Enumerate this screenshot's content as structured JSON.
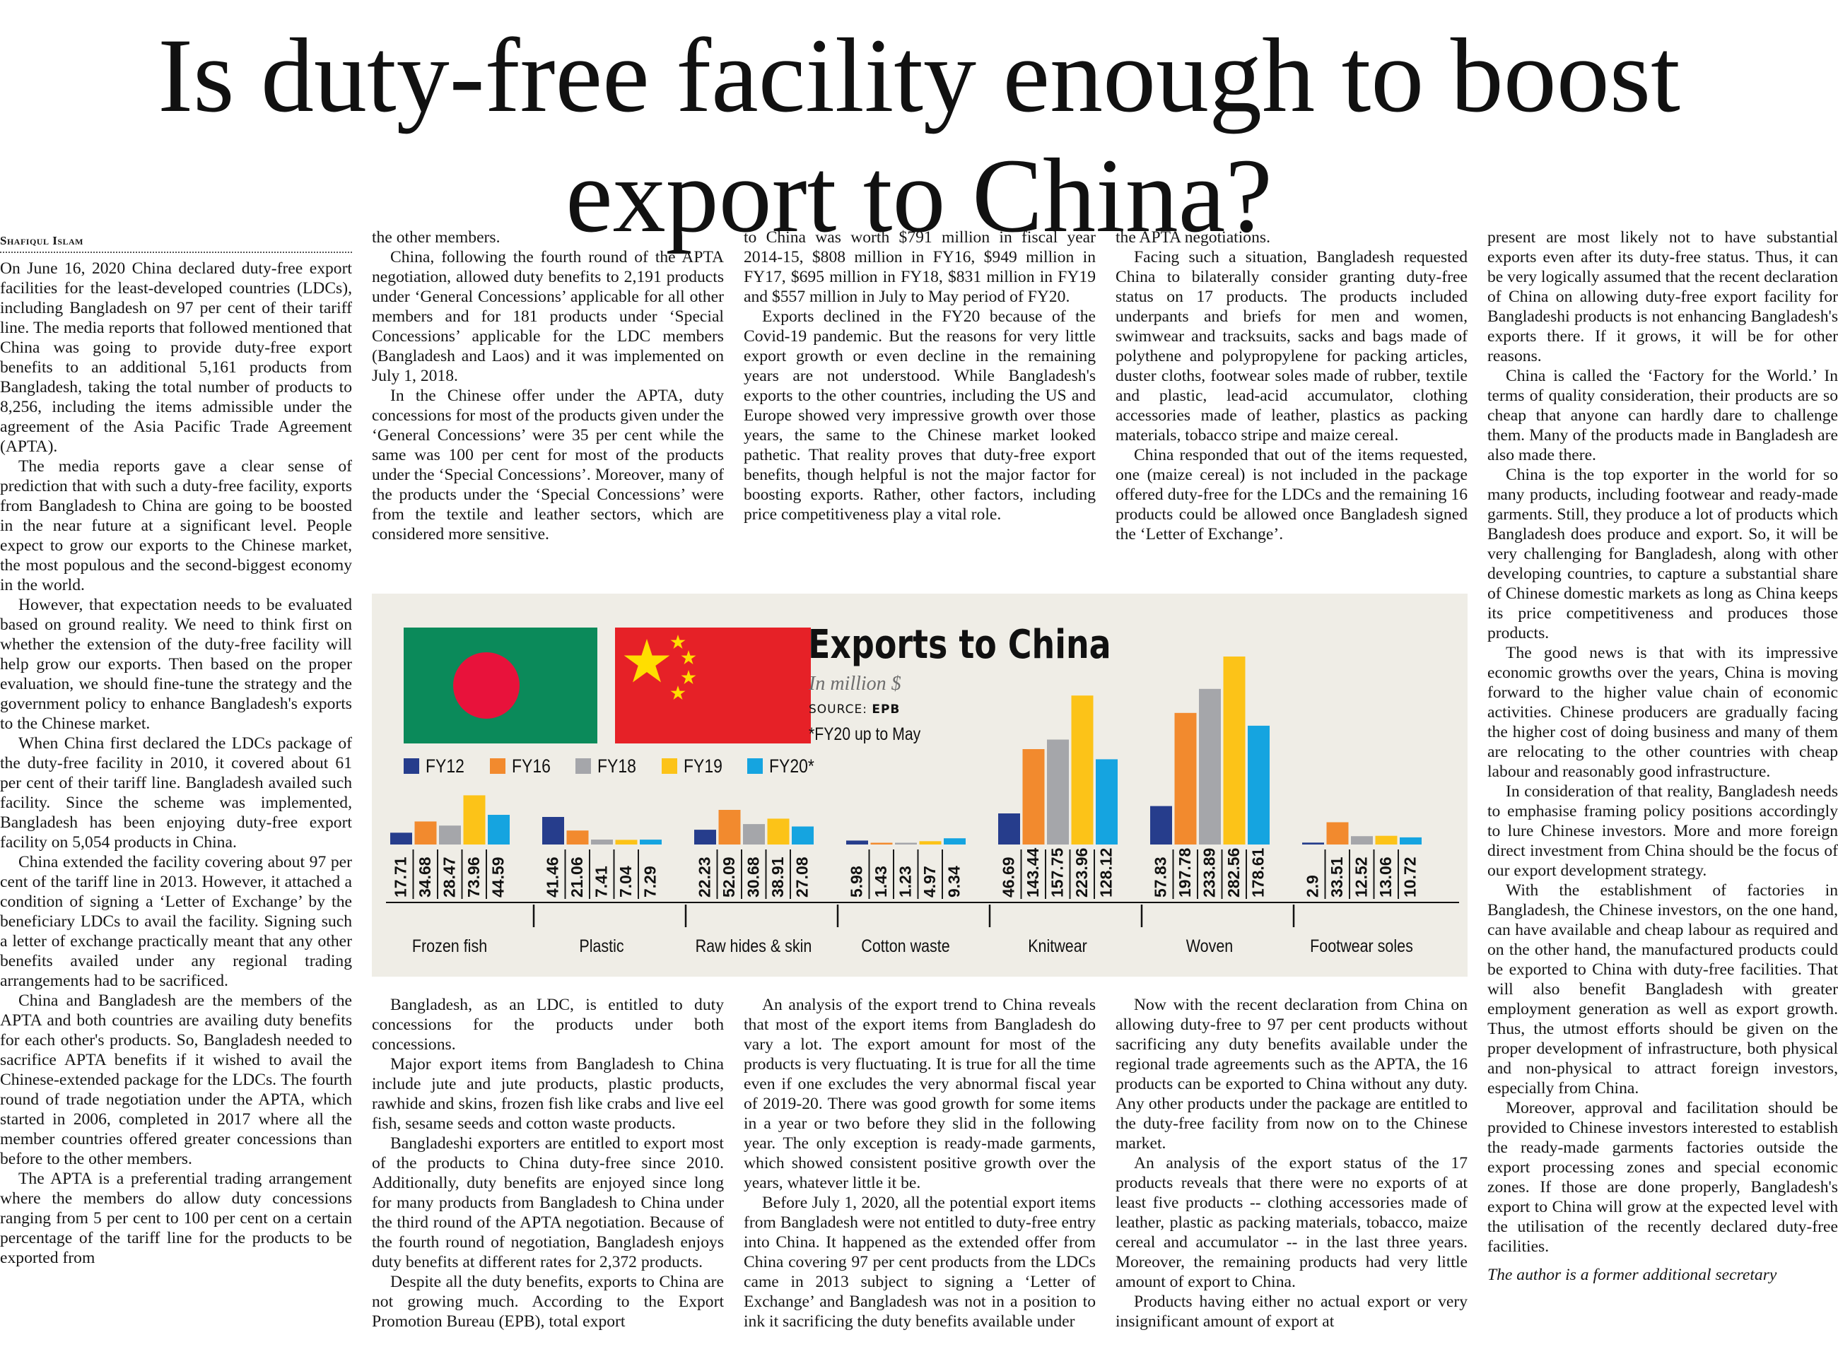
{
  "headline": {
    "line1": "Is duty-free facility enough to boost",
    "line2": "export to China?"
  },
  "byline": "Shafiqul Islam",
  "columns": {
    "col1": [
      "On June 16, 2020 China declared duty-free export facilities for the least-developed countries (LDCs), including Bangladesh on 97 per cent of their tariff line. The media reports that followed mentioned that China was going to provide duty-free export benefits to an additional 5,161 products from Bangladesh, taking the total number of products to 8,256, including the items admissible under the agreement of the Asia Pacific Trade Agreement (APTA).",
      "The media reports gave a clear sense of prediction that with such a duty-free facility, exports from Bangladesh to China are going to be boosted in the near future at a significant level. People expect to grow our exports to the Chinese market, the most populous and the second-biggest economy in the world.",
      "However, that expectation needs to be evaluated based on ground reality. We need to think first on whether the extension of the duty-free facility will help grow our exports. Then based on the proper evaluation, we should fine-tune the strategy and the government policy to enhance Bangladesh's exports to the Chinese market.",
      "When China first declared the LDCs package of the duty-free facility in 2010, it covered about 61 per cent of their tariff line. Bangladesh availed such facility. Since the scheme was implemented, Bangladesh has been enjoying duty-free export facility on 5,054 products in China.",
      "China extended the facility covering about 97 per cent of the tariff line in 2013. However, it attached a condition of signing a ‘Letter of Exchange’ by the beneficiary LDCs to avail the facility. Signing such a letter of exchange practically meant that any other benefits availed under any regional trading arrangements had to be sacrificed.",
      "China and Bangladesh are the members of the APTA and both countries are availing duty benefits for each other's products. So, Bangladesh needed to sacrifice APTA benefits if it wished to avail the Chinese-extended package for the LDCs. The fourth round of trade negotiation under the APTA, which started in 2006, completed in 2017 where all the member countries offered greater concessions than before to the other members.",
      "The APTA is a preferential trading arrangement where the members do allow duty concessions ranging from 5 per cent to 100 per cent on a certain percentage of the tariff line for the products to be exported from"
    ],
    "col2_top": [
      "the other members.",
      "China, following the fourth round of the APTA negotiation, allowed duty benefits to 2,191 products under ‘General Concessions’ applicable for all other members and for 181 products under ‘Special Concessions’ applicable for the LDC members (Bangladesh and Laos) and it was implemented on July 1, 2018.",
      "In the Chinese offer under the APTA, duty concessions for most of the products given under the ‘General Concessions’ were 35 per cent while the same was 100 per cent for most of the products under the ‘Special Concessions’. Moreover, many of the products under the ‘Special Concessions’ were from the textile and leather sectors, which are considered more sensitive."
    ],
    "col3_top": [
      "to China was worth $791 million in fiscal year 2014-15, $808 million in FY16, $949 million in FY17, $695 million in FY18, $831 million in FY19 and $557 million in July to May period of FY20.",
      "Exports declined in the FY20 because of the Covid-19 pandemic. But the reasons for very little export growth or even decline in the remaining years are not understood. While Bangladesh's exports to the other countries, including the US and Europe showed very impressive growth over those years, the same to the Chinese market looked pathetic. That reality proves that duty-free export benefits, though helpful is not the major factor for boosting exports. Rather, other factors, including price competitiveness play a vital role."
    ],
    "col4_top": [
      "the APTA negotiations.",
      "Facing such a situation, Bangladesh requested China to bilaterally consider granting duty-free status on 17 products. The products included underpants and briefs for men and women, swimwear and tracksuits, sacks and bags made of polythene and polypropylene for packing articles, duster cloths, footwear soles made of rubber, textile and plastic, lead-acid accumulator, clothing accessories made of leather, plastics as packing materials, tobacco stripe and maize cereal.",
      "China responded that out of the items requested, one (maize cereal) is not included in the package offered duty-free for the LDCs and the remaining 16 products could be allowed once Bangladesh signed the ‘Letter of Exchange’."
    ],
    "col5": [
      "present are most likely not to have substantial exports even after its duty-free status. Thus, it can be very logically assumed that the recent declaration of China on allowing duty-free export facility for Bangladeshi products is not enhancing Bangladesh's exports there. If it grows, it will be for other reasons.",
      "China is called the ‘Factory for the World.’ In terms of quality consideration, their products are so cheap that anyone can hardly dare to challenge them. Many of the products made in Bangladesh are also made there.",
      "China is the top exporter in the world for so many products, including footwear and ready-made garments. Still, they produce a lot of products which Bangladesh does produce and export. So, it will be very challenging for Bangladesh, along with other developing countries, to capture a substantial share of Chinese domestic markets as long as China keeps its price competitiveness and produces those products.",
      "The good news is that with its impressive economic growths over the years, China is moving forward to the higher value chain of economic activities. Chinese producers are gradually facing the higher cost of doing business and many of them are relocating to the other countries with cheap labour and reasonably good infrastructure.",
      "In consideration of that reality, Bangladesh needs to emphasise framing policy positions accordingly to lure Chinese investors. More and more foreign direct investment from China should be the focus of our export development strategy.",
      "With the establishment of factories in Bangladesh, the Chinese investors, on the one hand, can have available and cheap labour as required and on the other hand, the manufactured products could be exported to China with duty-free facilities. That will also benefit Bangladesh with greater employment generation as well as export growth. Thus, the utmost efforts should be given on the proper development of infrastructure, both physical and non-physical to attract foreign investors, especially from China.",
      "Moreover, approval and facilitation should be provided to Chinese investors interested to establish the ready-made garments factories outside the export processing zones and special economic zones. If those are done properly, Bangladesh's export to China will grow at the expected level with the utilisation of the recently declared duty-free facilities."
    ],
    "author": "The author is a former additional secretary",
    "col2_bottom": [
      "Bangladesh, as an LDC, is entitled to duty concessions for the products under both concessions.",
      "Major export items from Bangladesh to China include jute and jute products, plastic products, rawhide and skins, frozen fish like crabs and live eel fish, sesame seeds and cotton waste products.",
      "Bangladeshi exporters are entitled to export most of the products to China duty-free since 2010. Additionally, duty benefits are enjoyed since long for many products from Bangladesh to China under the third round of the APTA negotiation. Because of the fourth round of negotiation, Bangladesh enjoys duty benefits at different rates for 2,372 products.",
      "Despite all the duty benefits, exports to China are not growing much. According to the Export Promotion Bureau (EPB), total export"
    ],
    "col3_bottom": [
      "An analysis of the export trend to China reveals that most of the export items from Bangladesh do vary a lot. The export amount for most of the products is very fluctuating. It is true for all the time even if one excludes the very abnormal fiscal year of 2019-20. There was good growth for some items in a year or two before they slid in the following year. The only exception is ready-made garments, which showed consistent positive growth over the years, whatever little it be.",
      "Before July 1, 2020, all the potential export items from Bangladesh were not entitled to duty-free entry into China. It happened as the extended offer from China covering 97 per cent products from the LDCs came in 2013 subject to signing a ‘Letter of Exchange’ and Bangladesh was not in a position to ink it sacrificing the duty benefits available under"
    ],
    "col4_bottom": [
      "Now with the recent declaration from China on allowing duty-free to 97 per cent products without sacrificing any duty benefits available under the regional trade agreements such as the APTA, the 16 products can be exported to China without any duty. Any other products under the package are entitled to the duty-free facility from now on to the Chinese market.",
      "An analysis of the export status of the 17 products reveals that there were no exports of at least five products -- clothing accessories made of leather, plastic as packing materials, tobacco, maize cereal and accumulator -- in the last three years. Moreover, the remaining products had very little amount of export to China.",
      "Products having either no actual export or very insignificant amount of export at"
    ]
  },
  "infographic": {
    "flags": [
      "bangladesh-flag",
      "china-flag"
    ],
    "title": "Exports to China",
    "unit": "In million $",
    "source_label": "SOURCE:",
    "source": "EPB",
    "note": "*FY20 up to May",
    "colors": {
      "FY12": "#263d8c",
      "FY16": "#f28a2e",
      "FY18": "#a5a6aa",
      "FY19": "#fcc318",
      "FY20*": "#15a4e0",
      "background": "#efede6"
    }
  },
  "chart_data": {
    "type": "bar",
    "title": "Exports to China",
    "unit": "In million $",
    "categories": [
      "Frozen fish",
      "Plastic",
      "Raw hides & skin",
      "Cotton waste",
      "Knitwear",
      "Woven",
      "Footwear soles"
    ],
    "series": [
      {
        "name": "FY12",
        "values": [
          17.71,
          41.46,
          22.23,
          5.98,
          46.69,
          57.83,
          2.9
        ]
      },
      {
        "name": "FY16",
        "values": [
          34.68,
          21.06,
          52.09,
          1.43,
          143.44,
          197.78,
          33.51
        ]
      },
      {
        "name": "FY18",
        "values": [
          28.47,
          7.41,
          30.68,
          1.23,
          157.75,
          233.89,
          12.52
        ]
      },
      {
        "name": "FY19",
        "values": [
          73.96,
          7.04,
          38.91,
          4.97,
          223.96,
          282.56,
          13.06
        ]
      },
      {
        "name": "FY20*",
        "values": [
          44.59,
          7.29,
          27.08,
          9.34,
          128.12,
          178.61,
          10.72
        ]
      }
    ],
    "value_labels": [
      [
        "17.71",
        "34.68",
        "28.47",
        "73.96",
        "44.59"
      ],
      [
        "41.46",
        "21.06",
        "7.41",
        "7.04",
        "7.29"
      ],
      [
        "22.23",
        "52.09",
        "30.68",
        "38.91",
        "27.08"
      ],
      [
        "5.98",
        "1.43",
        "1.23",
        "4.97",
        "9.34"
      ],
      [
        "46.69",
        "143.44",
        "157.75",
        "223.96",
        "128.12"
      ],
      [
        "57.83",
        "197.78",
        "233.89",
        "282.56",
        "178.61"
      ],
      [
        "2.9",
        "33.51",
        "12.52",
        "13.06",
        "10.72"
      ]
    ],
    "legend_position": "top-left",
    "grid": false
  }
}
